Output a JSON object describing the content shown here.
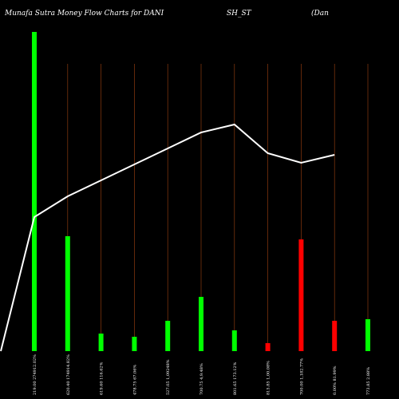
{
  "chart_data": {
    "type": "bar",
    "title_parts": [
      "Munafa Sutra  Money Flow  Charts for DANI",
      "SH_ST",
      "(Dan"
    ],
    "categories": [
      "219.00 274912.02%",
      "620.40 174914.82%",
      "619.60 116.62%",
      "478.75 67.06%",
      "527.05 1,09248%",
      "700.75 4,9.48%",
      "801.65 173.12%",
      "815.85 1,00.08%",
      "700.00 1,182.77%",
      "0.00% 81.99%",
      "773.85 2.88%"
    ],
    "values": [
      100,
      36,
      5.5,
      4.5,
      9.5,
      17,
      6.5,
      2.5,
      35,
      9.5,
      10
    ],
    "colors": [
      "green",
      "green",
      "green",
      "green",
      "green",
      "green",
      "green",
      "red",
      "red",
      "red",
      "green"
    ],
    "line": [
      0,
      42,
      48.5,
      53.5,
      58.5,
      63.5,
      68.5,
      71,
      62,
      59,
      61.5
    ],
    "ylim": [
      0,
      110
    ]
  },
  "colors": {
    "background": "#000000",
    "green": "#00ff00",
    "red": "#ff0000",
    "gridline": "#8b3a0f",
    "line": "#ffffff"
  }
}
